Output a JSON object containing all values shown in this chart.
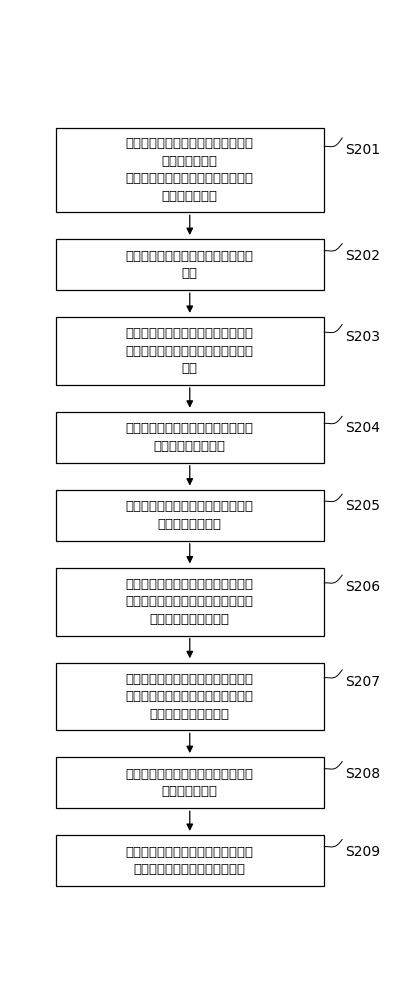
{
  "bg_color": "#ffffff",
  "box_color": "#ffffff",
  "box_edge_color": "#000000",
  "arrow_color": "#000000",
  "label_color": "#000000",
  "font_size": 9.5,
  "label_font_size": 10,
  "steps": [
    {
      "id": "S201",
      "label": "所述控制装置将气候信息指令至所述\n气候模拟装置，\n所述控制装置将检测指令发送至所述\n电能表检测装置",
      "lines": 4
    },
    {
      "id": "S202",
      "label": "所述气候模拟装置接收所述气候信息\n指令",
      "lines": 2
    },
    {
      "id": "S203",
      "label": "所述气候模拟装置根据所述气候信息\n指令，控制所述气候模拟装置内部的\n气候",
      "lines": 3
    },
    {
      "id": "S204",
      "label": "所述气候模拟装置将实时的气候信息\n数据发送至控制装置",
      "lines": 2
    },
    {
      "id": "S205",
      "label": "所述电能表检测装置接收所述控制装\n置发送的检测指令",
      "lines": 2
    },
    {
      "id": "S206",
      "label": "所述电能表检测装置根据检测指令，\n对所述电能表进行相应的检测；将检\n测数据发送至控制装置",
      "lines": 3
    },
    {
      "id": "S207",
      "label": "所述控制装置接收所述气候模拟装置\n发送的气候信息数据和所述电能表检\n测装置发送的检测数据",
      "lines": 3
    },
    {
      "id": "S208",
      "label": "所述控制装置根据所述气候信息，确\n定所述检测类型",
      "lines": 2
    },
    {
      "id": "S209",
      "label": "所述控制装置根据检测类型，存储所\n述气候信息数据和对应检测数据",
      "lines": 2
    }
  ]
}
